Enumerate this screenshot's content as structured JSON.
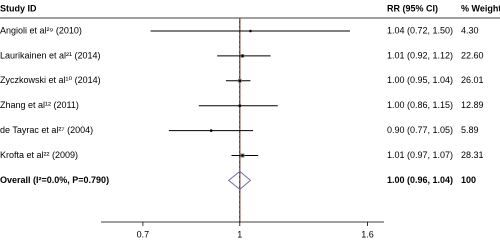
{
  "chart_data": {
    "type": "forest",
    "study_header": "Study ID",
    "ci_header": "RR (95% CI)",
    "weight_header": "% Weight",
    "categories": [
      "Angioli et al²⁹ (2010)",
      "Laurikainen et al²¹ (2014)",
      "Zyczkowski et al¹⁰ (2014)",
      "Zhang et al¹² (2011)",
      "de Tayrac et al²⁷ (2004)",
      "Krofta et al²² (2009)"
    ],
    "values": [
      1.04,
      1.01,
      1.0,
      1.0,
      0.9,
      1.01
    ],
    "lower": [
      0.72,
      0.92,
      0.95,
      0.86,
      0.77,
      0.97
    ],
    "upper": [
      1.5,
      1.12,
      1.04,
      1.15,
      1.05,
      1.07
    ],
    "value_labels": [
      "1.04 (0.72, 1.50)",
      "1.01 (0.92, 1.12)",
      "1.00 (0.95, 1.04)",
      "1.00 (0.86, 1.15)",
      "0.90 (0.77, 1.05)",
      "1.01 (0.97, 1.07)"
    ],
    "weights": [
      4.3,
      22.6,
      26.01,
      12.89,
      5.89,
      28.31
    ],
    "weight_labels": [
      "4.30",
      "22.60",
      "26.01",
      "12.89",
      "5.89",
      "28.31"
    ],
    "overall": {
      "label": "Overall (I²=0.0%, P=0.790)",
      "value": 1.0,
      "lower": 0.96,
      "upper": 1.04,
      "value_label": "1.00 (0.96, 1.04)",
      "weight": 100
    },
    "null_line": 1,
    "log_scale": true,
    "xlim": [
      0.6,
      1.7
    ],
    "xticks": [
      0.7,
      1,
      1.6
    ],
    "color": "#000000",
    "overall_color": "#6a6ab4",
    "estimate_line_color": "#c0392b"
  }
}
